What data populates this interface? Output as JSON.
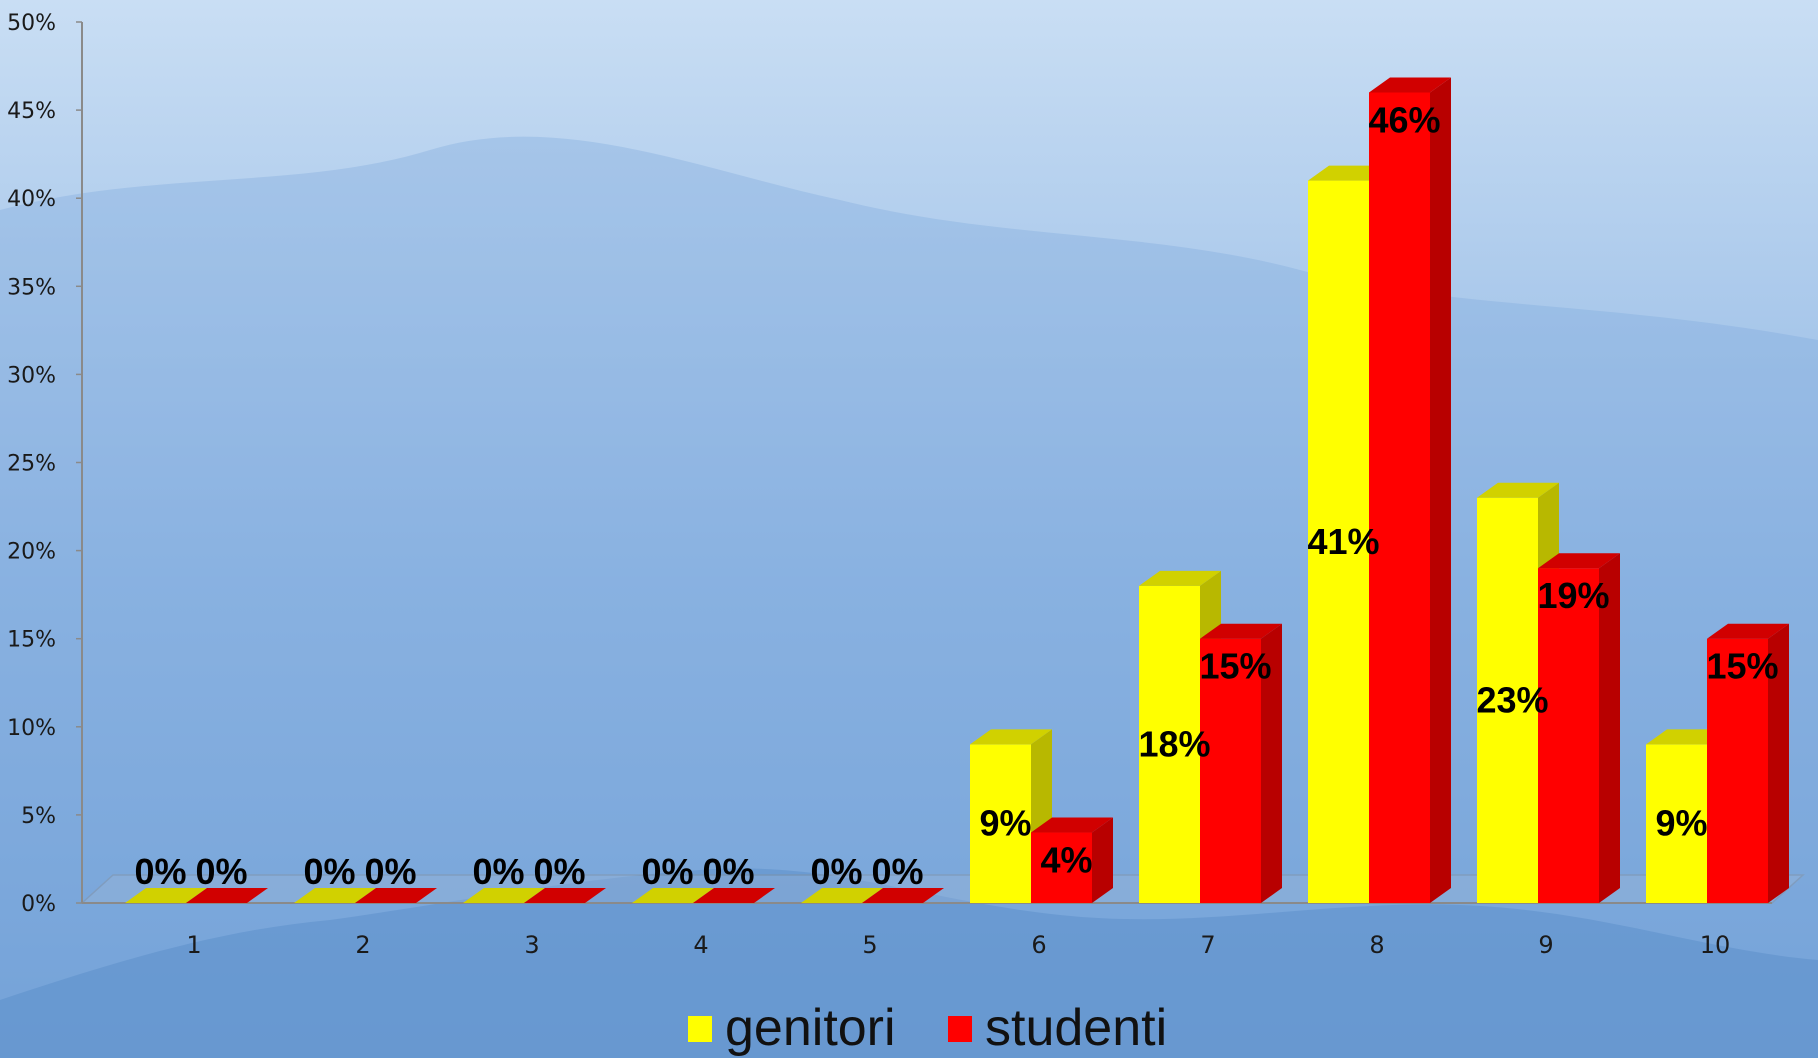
{
  "chart_data": {
    "type": "bar",
    "categories": [
      "1",
      "2",
      "3",
      "4",
      "5",
      "6",
      "7",
      "8",
      "9",
      "10"
    ],
    "series": [
      {
        "name": "genitori",
        "values": [
          0,
          0,
          0,
          0,
          0,
          9,
          18,
          41,
          23,
          9
        ],
        "labels": [
          "0%",
          "0%",
          "0%",
          "0%",
          "0%",
          "9%",
          "18%",
          "41%",
          "23%",
          "9%"
        ]
      },
      {
        "name": "studenti",
        "values": [
          0,
          0,
          0,
          0,
          0,
          4,
          15,
          46,
          19,
          15
        ],
        "labels": [
          "0%",
          "0%",
          "0%",
          "0%",
          "0%",
          "4%",
          "15%",
          "46%",
          "19%",
          "15%"
        ]
      }
    ],
    "y_ticks": [
      "0%",
      "5%",
      "10%",
      "15%",
      "20%",
      "25%",
      "30%",
      "35%",
      "40%",
      "45%",
      "50%"
    ],
    "ylim": [
      0,
      50
    ],
    "unit": "%",
    "legend_position": "bottom-center",
    "grid": false,
    "three_d": true
  },
  "colors": {
    "genitori": "#ffff00",
    "studenti": "#ff0000",
    "background_top": "#c7dcf3",
    "background_bottom": "#6e9ed6"
  }
}
